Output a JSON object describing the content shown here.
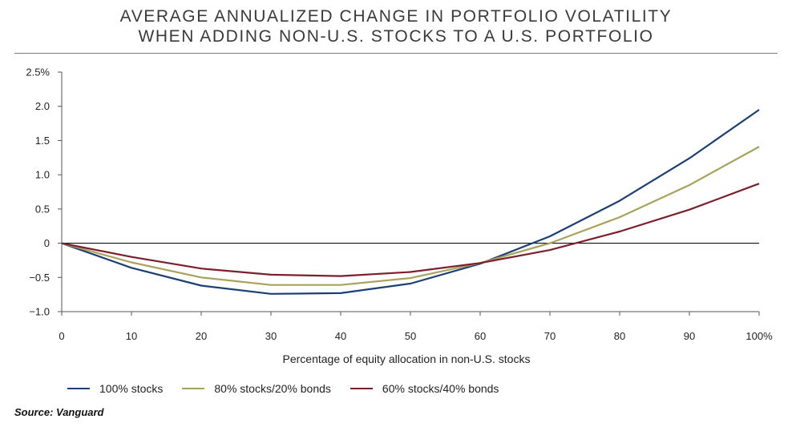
{
  "title_line1": "AVERAGE ANNUALIZED CHANGE IN PORTFOLIO VOLATILITY",
  "title_line2": "WHEN ADDING NON-U.S. STOCKS TO A U.S. PORTFOLIO",
  "source": "Source: Vanguard",
  "chart_data": {
    "type": "line",
    "xlabel": "Percentage of equity allocation in non-U.S. stocks",
    "ylabel": "",
    "xlim": [
      0,
      100
    ],
    "ylim": [
      -1.0,
      2.5
    ],
    "x_ticks": [
      0,
      10,
      20,
      30,
      40,
      50,
      60,
      70,
      80,
      90,
      100
    ],
    "x_tick_labels": [
      "0",
      "10",
      "20",
      "30",
      "40",
      "50",
      "60",
      "70",
      "80",
      "90",
      "100%"
    ],
    "y_ticks": [
      2.5,
      2.0,
      1.5,
      1.0,
      0.5,
      0,
      -0.5,
      -1.0
    ],
    "y_tick_labels": [
      "2.5%",
      "2.0",
      "1.5",
      "1.0",
      "0.5",
      "0",
      "−0.5",
      "−1.0"
    ],
    "grid": false,
    "zero_line": true,
    "legend_position": "bottom-left",
    "x": [
      0,
      10,
      20,
      30,
      40,
      50,
      60,
      70,
      80,
      90,
      100
    ],
    "series": [
      {
        "name": "100% stocks",
        "color": "#1b3f75",
        "values": [
          0,
          -0.36,
          -0.62,
          -0.74,
          -0.73,
          -0.59,
          -0.3,
          0.1,
          0.62,
          1.24,
          1.95
        ]
      },
      {
        "name": "80% stocks/20% bonds",
        "color": "#a8a25c",
        "values": [
          0,
          -0.28,
          -0.5,
          -0.61,
          -0.61,
          -0.51,
          -0.29,
          0.0,
          0.38,
          0.85,
          1.41
        ]
      },
      {
        "name": "60% stocks/40% bonds",
        "color": "#7a1f2b",
        "values": [
          0,
          -0.2,
          -0.37,
          -0.46,
          -0.48,
          -0.42,
          -0.29,
          -0.1,
          0.17,
          0.49,
          0.87
        ]
      }
    ]
  }
}
